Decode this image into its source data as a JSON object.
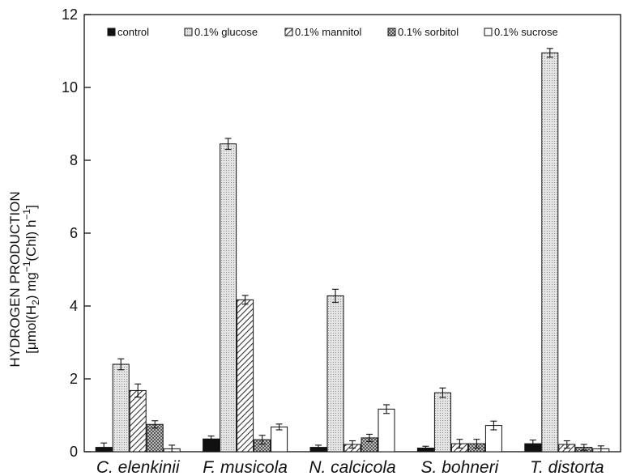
{
  "chart_data": {
    "type": "bar",
    "title": "",
    "xlabel": "",
    "ylabel": "HYDROGEN PRODUCTION",
    "ylabel_line2": "[μmol(H2) mg−1(Chl) h−1]",
    "ylabel_parts": {
      "p1": "[μmol(H",
      "sub": "2",
      "p2": ") mg",
      "sup1": "−1",
      "p3": "(Chl) h",
      "sup2": "−1",
      "p4": "]"
    },
    "ylim": [
      0,
      12
    ],
    "yticks": [
      "0",
      "2",
      "4",
      "6",
      "8",
      "10",
      "12"
    ],
    "grid": false,
    "legend_position": "top",
    "categories": [
      "C. elenkinii",
      "F. musicola",
      "N. calcicola",
      "S. bohneri",
      "T. distorta"
    ],
    "series": [
      {
        "name": "control",
        "fill": "#111111",
        "pattern": "solid",
        "values": [
          0.12,
          0.35,
          0.12,
          0.1,
          0.22
        ],
        "errors": [
          0.12,
          0.08,
          0.06,
          0.05,
          0.1
        ]
      },
      {
        "name": "0.1% glucose",
        "fill": "#d8d8d8",
        "pattern": "dots",
        "values": [
          2.4,
          8.45,
          4.28,
          1.62,
          10.95
        ],
        "errors": [
          0.15,
          0.15,
          0.18,
          0.13,
          0.12
        ]
      },
      {
        "name": "0.1%  mannitol",
        "fill": "#ffffff",
        "pattern": "diagonal",
        "values": [
          1.68,
          4.17,
          0.2,
          0.22,
          0.2
        ],
        "errors": [
          0.18,
          0.12,
          0.1,
          0.12,
          0.1
        ]
      },
      {
        "name": "0.1% sorbitol",
        "fill": "#888888",
        "pattern": "grid",
        "values": [
          0.75,
          0.33,
          0.38,
          0.22,
          0.12
        ],
        "errors": [
          0.1,
          0.12,
          0.1,
          0.12,
          0.08
        ]
      },
      {
        "name": "0.1% sucrose",
        "fill": "#ffffff",
        "pattern": "none",
        "values": [
          0.08,
          0.68,
          1.17,
          0.72,
          0.08
        ],
        "errors": [
          0.1,
          0.08,
          0.12,
          0.12,
          0.08
        ]
      }
    ]
  }
}
